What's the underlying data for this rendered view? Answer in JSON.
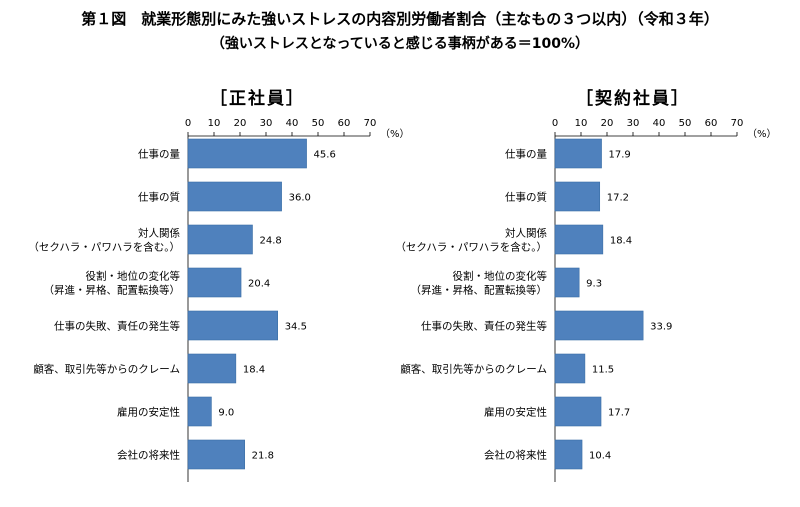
{
  "title": "第１図　就業形態別にみた強いストレスの内容別労働者割合（主なもの３つ以内）（令和３年）",
  "subtitle": "（強いストレスとなっていると感じる事柄がある＝100%）",
  "chart_data": [
    {
      "type": "bar",
      "orientation": "horizontal",
      "title": "［正社員］",
      "unit": "（%）",
      "xlim": [
        0,
        70
      ],
      "ticks": [
        "0",
        "10",
        "20",
        "30",
        "40",
        "50",
        "60",
        "70"
      ],
      "categories": [
        [
          "仕事の量"
        ],
        [
          "仕事の質"
        ],
        [
          "対人関係",
          "（セクハラ・パワハラを含む。）"
        ],
        [
          "役割・地位の変化等",
          "（昇進・昇格、配置転換等）"
        ],
        [
          "仕事の失敗、責任の発生等"
        ],
        [
          "顧客、取引先等からのクレーム"
        ],
        [
          "雇用の安定性"
        ],
        [
          "会社の将来性"
        ]
      ],
      "values": [
        45.6,
        36.0,
        24.8,
        20.4,
        34.5,
        18.4,
        9.0,
        21.8
      ],
      "labels": [
        "45.6",
        "36.0",
        "24.8",
        "20.4",
        "34.5",
        "18.4",
        "9.0",
        "21.8"
      ],
      "bar_color": "#4f81bd"
    },
    {
      "type": "bar",
      "orientation": "horizontal",
      "title": "［契約社員］",
      "unit": "（%）",
      "xlim": [
        0,
        70
      ],
      "ticks": [
        "0",
        "10",
        "20",
        "30",
        "40",
        "50",
        "60",
        "70"
      ],
      "categories": [
        [
          "仕事の量"
        ],
        [
          "仕事の質"
        ],
        [
          "対人関係",
          "（セクハラ・パワハラを含む。）"
        ],
        [
          "役割・地位の変化等",
          "（昇進・昇格、配置転換等）"
        ],
        [
          "仕事の失敗、責任の発生等"
        ],
        [
          "顧客、取引先等からのクレーム"
        ],
        [
          "雇用の安定性"
        ],
        [
          "会社の将来性"
        ]
      ],
      "values": [
        17.9,
        17.2,
        18.4,
        9.3,
        33.9,
        11.5,
        17.7,
        10.4
      ],
      "labels": [
        "17.9",
        "17.2",
        "18.4",
        "9.3",
        "33.9",
        "11.5",
        "17.7",
        "10.4"
      ],
      "bar_color": "#4f81bd"
    }
  ]
}
